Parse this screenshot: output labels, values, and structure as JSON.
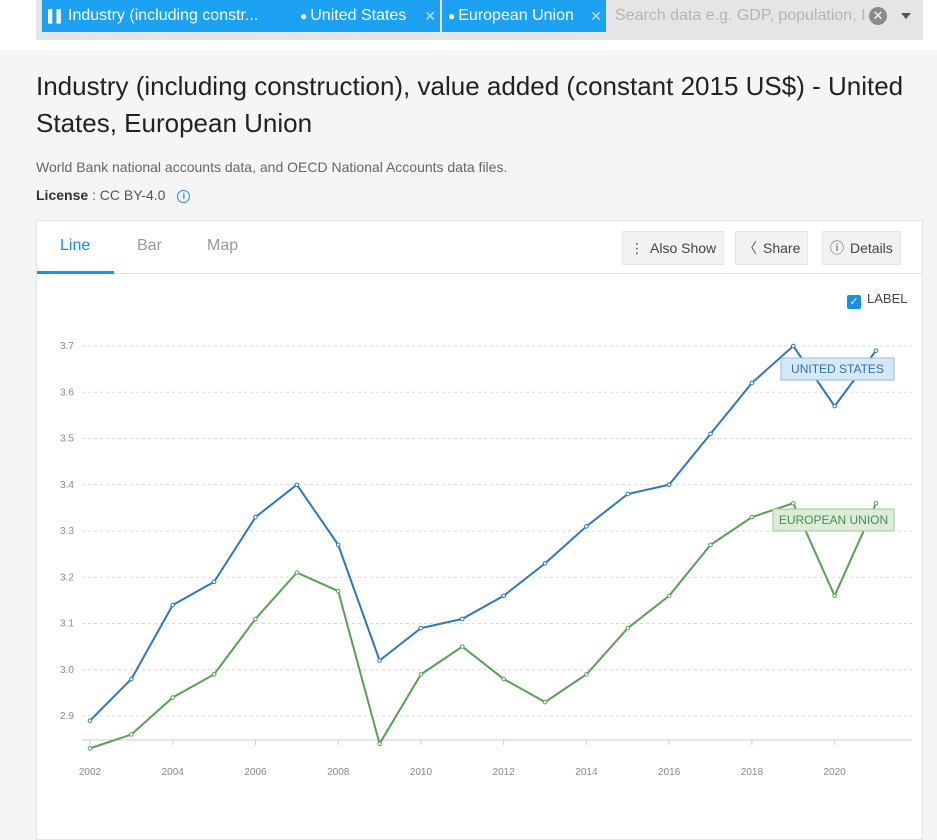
{
  "search": {
    "chips": [
      {
        "label": "Industry (including constr...",
        "icon": "bar-chart-icon"
      },
      {
        "label": "United States",
        "icon": "location-pin-icon"
      },
      {
        "label": "European Union",
        "icon": "location-pin-icon"
      }
    ],
    "placeholder": "Search data e.g. GDP, population, I"
  },
  "page": {
    "title": "Industry (including construction), value added (constant 2015 US$) - United States, European Union",
    "source": "World Bank national accounts data, and OECD National Accounts data files.",
    "license_label": "License",
    "license_value": ": CC BY-4.0"
  },
  "tabs": [
    {
      "label": "Line",
      "active": true
    },
    {
      "label": "Bar",
      "active": false
    },
    {
      "label": "Map",
      "active": false
    }
  ],
  "toolbar": {
    "also_show": "Also Show",
    "share": "Share",
    "details": "Details"
  },
  "label_toggle": {
    "text": "LABEL",
    "checked": true
  },
  "colors": {
    "accent": "#1a8fe3",
    "us": "#2f77b5",
    "eu": "#5a9e5a"
  },
  "chart_data": {
    "type": "line",
    "x": [
      2002,
      2003,
      2004,
      2005,
      2006,
      2007,
      2008,
      2009,
      2010,
      2011,
      2012,
      2013,
      2014,
      2015,
      2016,
      2017,
      2018,
      2019,
      2020,
      2021
    ],
    "series": [
      {
        "name": "UNITED STATES",
        "values": [
          2.89,
          2.98,
          3.14,
          3.19,
          3.33,
          3.4,
          3.27,
          3.02,
          3.09,
          3.11,
          3.16,
          3.23,
          3.31,
          3.38,
          3.4,
          3.51,
          3.62,
          3.7,
          3.57,
          3.69
        ]
      },
      {
        "name": "EUROPEAN UNION",
        "values": [
          2.83,
          2.86,
          2.94,
          2.99,
          3.11,
          3.21,
          3.17,
          2.84,
          2.99,
          3.05,
          2.98,
          2.93,
          2.99,
          3.09,
          3.16,
          3.27,
          3.33,
          3.36,
          3.16,
          3.36
        ]
      }
    ],
    "y_ticks": [
      "2.9",
      "3.0",
      "3.1",
      "3.2",
      "3.3",
      "3.4",
      "3.5",
      "3.6",
      "3.7"
    ],
    "x_ticks": [
      "2002",
      "2004",
      "2006",
      "2008",
      "2010",
      "2012",
      "2014",
      "2016",
      "2018",
      "2020"
    ],
    "ylim": [
      2.8,
      3.75
    ],
    "xlim": [
      2002,
      2021
    ],
    "grid": true
  }
}
